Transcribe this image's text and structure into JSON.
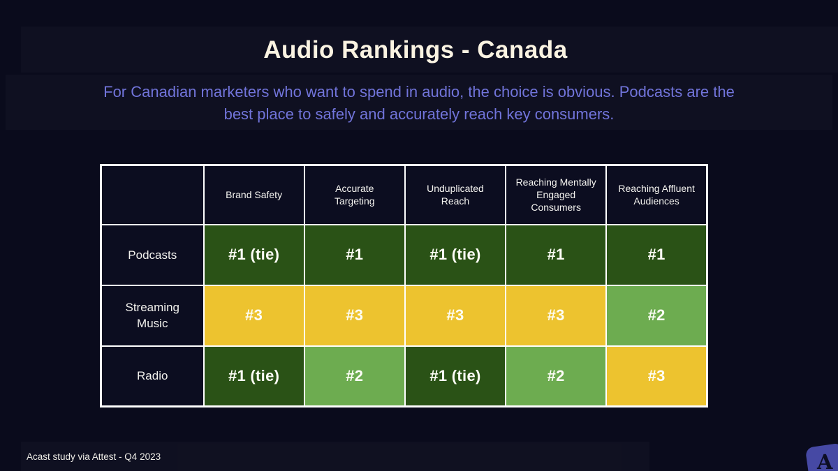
{
  "slide": {
    "title": "Audio Rankings - Canada",
    "subtitle_line1": "For Canadian marketers who want to spend in audio, the choice is obvious.  Podcasts are the",
    "subtitle_line2": "best place to safely and accurately reach key consumers.",
    "source": "Acast study via Attest - Q4 2023",
    "logo_letter": "A"
  },
  "colors": {
    "background": "#0a0b1c",
    "title_text": "#faf3e2",
    "subtitle_text": "#7174da",
    "table_border": "#ffffff",
    "header_cell_bg": "#0c0d20",
    "rank_1": "#2a5216",
    "rank_2": "#6dac50",
    "rank_3": "#edc32f",
    "rank_text": "#fdfdf6",
    "footer_text": "#efede7",
    "logo": "#4649a4",
    "logo_letter": "#0d0e24"
  },
  "chart_data": {
    "type": "table",
    "title": "Audio Rankings - Canada",
    "columns": [
      "",
      "Brand Safety",
      "Accurate Targeting",
      "Unduplicated Reach",
      "Reaching Mentally Engaged Consumers",
      "Reaching Affluent Audiences"
    ],
    "rows": [
      {
        "label": "Podcasts",
        "values": [
          "#1 (tie)",
          "#1",
          "#1 (tie)",
          "#1",
          "#1"
        ],
        "rank_levels": [
          1,
          1,
          1,
          1,
          1
        ]
      },
      {
        "label": "Streaming Music",
        "values": [
          "#3",
          "#3",
          "#3",
          "#3",
          "#2"
        ],
        "rank_levels": [
          3,
          3,
          3,
          3,
          2
        ]
      },
      {
        "label": "Radio",
        "values": [
          "#1 (tie)",
          "#2",
          "#1 (tie)",
          "#2",
          "#3"
        ],
        "rank_levels": [
          1,
          2,
          1,
          2,
          3
        ]
      }
    ],
    "legend_semantics": {
      "1": "best (dark green)",
      "2": "middle (light green)",
      "3": "worst (yellow)"
    }
  }
}
